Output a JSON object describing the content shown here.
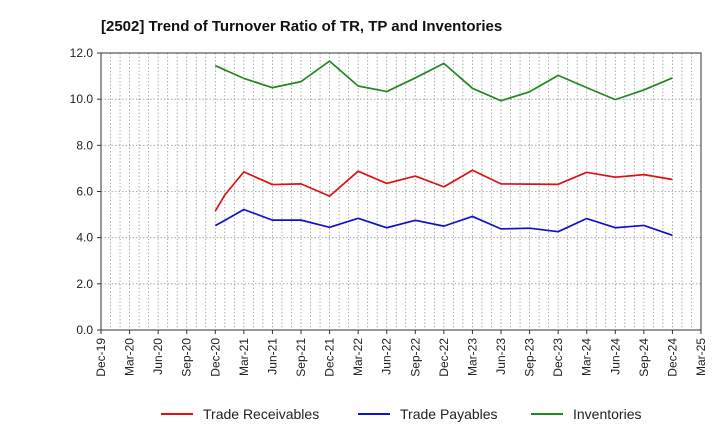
{
  "chart_data": {
    "type": "line",
    "title": "[2502]  Trend of Turnover Ratio of TR, TP and Inventories",
    "xlabel": "",
    "ylabel": "",
    "ylim": [
      0,
      12
    ],
    "y_ticks": [
      "0.0",
      "2.0",
      "4.0",
      "6.0",
      "8.0",
      "10.0",
      "12.0"
    ],
    "x_ticks": [
      "Dec-19",
      "Mar-20",
      "Jun-20",
      "Sep-20",
      "Dec-20",
      "Mar-21",
      "Jun-21",
      "Sep-21",
      "Dec-21",
      "Mar-22",
      "Jun-22",
      "Sep-22",
      "Dec-22",
      "Mar-23",
      "Jun-23",
      "Sep-23",
      "Dec-23",
      "Mar-24",
      "Jun-24",
      "Sep-24",
      "Dec-24",
      "Mar-25"
    ],
    "grid": true,
    "legend_position": "bottom",
    "series": [
      {
        "name": "Trade Receivables",
        "color": "#dd1111",
        "points": [
          [
            "Dec-20",
            5.15
          ],
          [
            "Jan-21",
            5.85
          ],
          [
            "Mar-21",
            6.85
          ],
          [
            "Jun-21",
            6.3
          ],
          [
            "Sep-21",
            6.33
          ],
          [
            "Dec-21",
            5.8
          ],
          [
            "Mar-22",
            6.88
          ],
          [
            "Jun-22",
            6.35
          ],
          [
            "Sep-22",
            6.67
          ],
          [
            "Dec-22",
            6.2
          ],
          [
            "Mar-23",
            6.92
          ],
          [
            "Jun-23",
            6.33
          ],
          [
            "Sep-23",
            6.32
          ],
          [
            "Dec-23",
            6.31
          ],
          [
            "Mar-24",
            6.83
          ],
          [
            "Jun-24",
            6.62
          ],
          [
            "Sep-24",
            6.73
          ],
          [
            "Dec-24",
            6.52
          ]
        ]
      },
      {
        "name": "Trade Payables",
        "color": "#1111cc",
        "points": [
          [
            "Dec-20",
            4.52
          ],
          [
            "Jan-21",
            4.75
          ],
          [
            "Mar-21",
            5.22
          ],
          [
            "Jun-21",
            4.76
          ],
          [
            "Sep-21",
            4.76
          ],
          [
            "Dec-21",
            4.45
          ],
          [
            "Mar-22",
            4.84
          ],
          [
            "Jun-22",
            4.43
          ],
          [
            "Sep-22",
            4.75
          ],
          [
            "Dec-22",
            4.5
          ],
          [
            "Mar-23",
            4.92
          ],
          [
            "Jun-23",
            4.38
          ],
          [
            "Sep-23",
            4.41
          ],
          [
            "Dec-23",
            4.26
          ],
          [
            "Mar-24",
            4.83
          ],
          [
            "Jun-24",
            4.43
          ],
          [
            "Sep-24",
            4.53
          ],
          [
            "Dec-24",
            4.1
          ]
        ]
      },
      {
        "name": "Inventories",
        "color": "#228822",
        "points": [
          [
            "Dec-20",
            11.45
          ],
          [
            "Mar-21",
            10.9
          ],
          [
            "Jun-21",
            10.5
          ],
          [
            "Sep-21",
            10.76
          ],
          [
            "Dec-21",
            11.65
          ],
          [
            "Mar-22",
            10.57
          ],
          [
            "Jun-22",
            10.33
          ],
          [
            "Sep-22",
            10.92
          ],
          [
            "Dec-22",
            11.55
          ],
          [
            "Mar-23",
            10.47
          ],
          [
            "Jun-23",
            9.93
          ],
          [
            "Sep-23",
            10.32
          ],
          [
            "Dec-23",
            11.03
          ],
          [
            "Mar-24",
            10.5
          ],
          [
            "Jun-24",
            9.98
          ],
          [
            "Sep-24",
            10.4
          ],
          [
            "Dec-24",
            10.92
          ]
        ]
      }
    ]
  }
}
